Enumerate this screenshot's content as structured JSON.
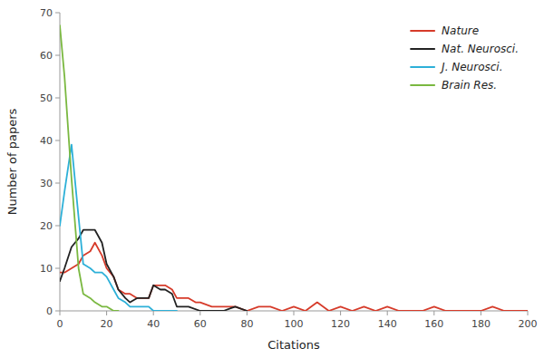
{
  "chart_data": {
    "type": "line",
    "xlabel": "Citations",
    "ylabel": "Number of papers",
    "xlim": [
      0,
      200
    ],
    "ylim": [
      0,
      70
    ],
    "xticks": [
      0,
      20,
      40,
      60,
      80,
      100,
      120,
      140,
      160,
      180,
      200
    ],
    "yticks": [
      0,
      10,
      20,
      30,
      40,
      50,
      60,
      70
    ],
    "grid": false,
    "legend": "upper right",
    "series": [
      {
        "name": "Nature",
        "color": "#d63b2a",
        "x": [
          0,
          2,
          5,
          8,
          10,
          13,
          15,
          18,
          20,
          23,
          25,
          28,
          30,
          33,
          35,
          38,
          40,
          43,
          45,
          48,
          50,
          53,
          55,
          58,
          60,
          65,
          70,
          75,
          80,
          85,
          90,
          95,
          100,
          105,
          110,
          115,
          120,
          125,
          130,
          135,
          140,
          145,
          150,
          155,
          160,
          165,
          170,
          175,
          180,
          185,
          190,
          195,
          200
        ],
        "values": [
          9,
          9,
          10,
          11,
          13,
          14,
          16,
          13,
          10,
          8,
          5,
          4,
          4,
          3,
          3,
          3,
          6,
          6,
          6,
          5,
          3,
          3,
          3,
          2,
          2,
          1,
          1,
          1,
          0,
          1,
          1,
          0,
          1,
          0,
          2,
          0,
          1,
          0,
          1,
          0,
          1,
          0,
          0,
          0,
          1,
          0,
          0,
          0,
          0,
          1,
          0,
          0,
          0
        ]
      },
      {
        "name": "Nat. Neurosci.",
        "color": "#222222",
        "x": [
          0,
          2,
          5,
          8,
          10,
          13,
          15,
          18,
          20,
          23,
          25,
          28,
          30,
          33,
          35,
          38,
          40,
          43,
          45,
          48,
          50,
          55,
          60,
          65,
          70,
          75,
          80
        ],
        "values": [
          7,
          10,
          15,
          17,
          19,
          19,
          19,
          16,
          11,
          8,
          5,
          3,
          2,
          3,
          3,
          3,
          6,
          5,
          5,
          4,
          1,
          1,
          0,
          0,
          0,
          1,
          0
        ]
      },
      {
        "name": "J. Neurosci.",
        "color": "#2db0d8",
        "x": [
          0,
          2,
          5,
          8,
          10,
          13,
          15,
          18,
          20,
          23,
          25,
          28,
          30,
          33,
          35,
          38,
          40,
          43,
          45,
          48,
          50
        ],
        "values": [
          20,
          28,
          39,
          22,
          11,
          10,
          9,
          9,
          8,
          5,
          3,
          2,
          1,
          1,
          1,
          1,
          0,
          0,
          0,
          0,
          0
        ]
      },
      {
        "name": "Brain Res.",
        "color": "#7ab840",
        "x": [
          0,
          2,
          5,
          8,
          10,
          13,
          15,
          18,
          20,
          23,
          25
        ],
        "values": [
          67,
          55,
          31,
          10,
          4,
          3,
          2,
          1,
          1,
          0,
          0
        ]
      }
    ]
  }
}
